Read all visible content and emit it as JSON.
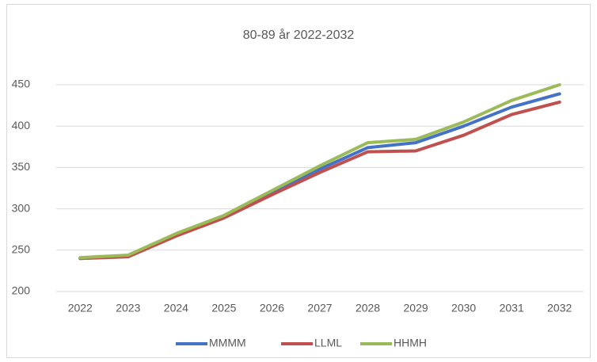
{
  "chart_data": {
    "type": "line",
    "title": "80-89 år 2022-2032",
    "categories": [
      "2022",
      "2023",
      "2024",
      "2025",
      "2026",
      "2027",
      "2028",
      "2029",
      "2030",
      "2031",
      "2032"
    ],
    "series": [
      {
        "name": "MMMM",
        "color": "#4472c4",
        "values": [
          240,
          243,
          269,
          291,
          320,
          348,
          374,
          380,
          400,
          423,
          439
        ]
      },
      {
        "name": "LLML",
        "color": "#c0504d",
        "values": [
          240,
          242,
          267,
          289,
          317,
          344,
          369,
          370,
          389,
          414,
          429
        ]
      },
      {
        "name": "HHMH",
        "color": "#9bbb59",
        "values": [
          241,
          244,
          270,
          292,
          322,
          352,
          380,
          384,
          405,
          431,
          450
        ]
      }
    ],
    "ylim": [
      200,
      450
    ],
    "yticks": [
      200,
      250,
      300,
      350,
      400,
      450
    ],
    "grid": true,
    "legend": "bottom"
  }
}
